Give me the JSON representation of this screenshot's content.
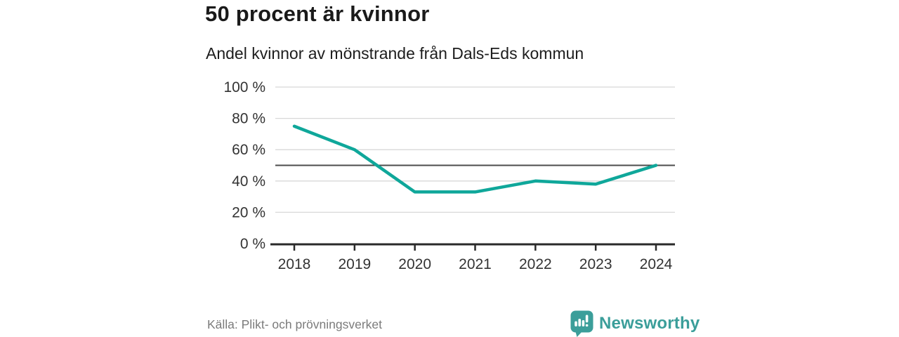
{
  "header": {
    "title": "50 procent är kvinnor",
    "subtitle": "Andel kvinnor av mönstrande från Dals-Eds kommun"
  },
  "chart_data": {
    "type": "line",
    "categories": [
      "2018",
      "2019",
      "2020",
      "2021",
      "2022",
      "2023",
      "2024"
    ],
    "values": [
      75,
      60,
      33,
      33,
      40,
      38,
      50
    ],
    "title": "50 procent är kvinnor",
    "subtitle": "Andel kvinnor av mönstrande från Dals-Eds kommun",
    "xlabel": "",
    "ylabel": "",
    "ylim": [
      0,
      100
    ],
    "yticks": [
      0,
      20,
      40,
      60,
      80,
      100
    ],
    "ytick_format": "{v} %",
    "grid": "horizontal",
    "legend": "none",
    "reference_line": 50,
    "colors": {
      "line": "#0fa79a",
      "grid": "#d8d8d8",
      "reference": "#4b4b4b",
      "axis": "#2a2a2a",
      "tick_text": "#333333"
    }
  },
  "footer": {
    "source": "Källa: Plikt- och prövningsverket",
    "brand": "Newsworthy",
    "brand_color": "#3b9e9a",
    "logo_icon": "bar-chart-speech-bubble-icon"
  }
}
